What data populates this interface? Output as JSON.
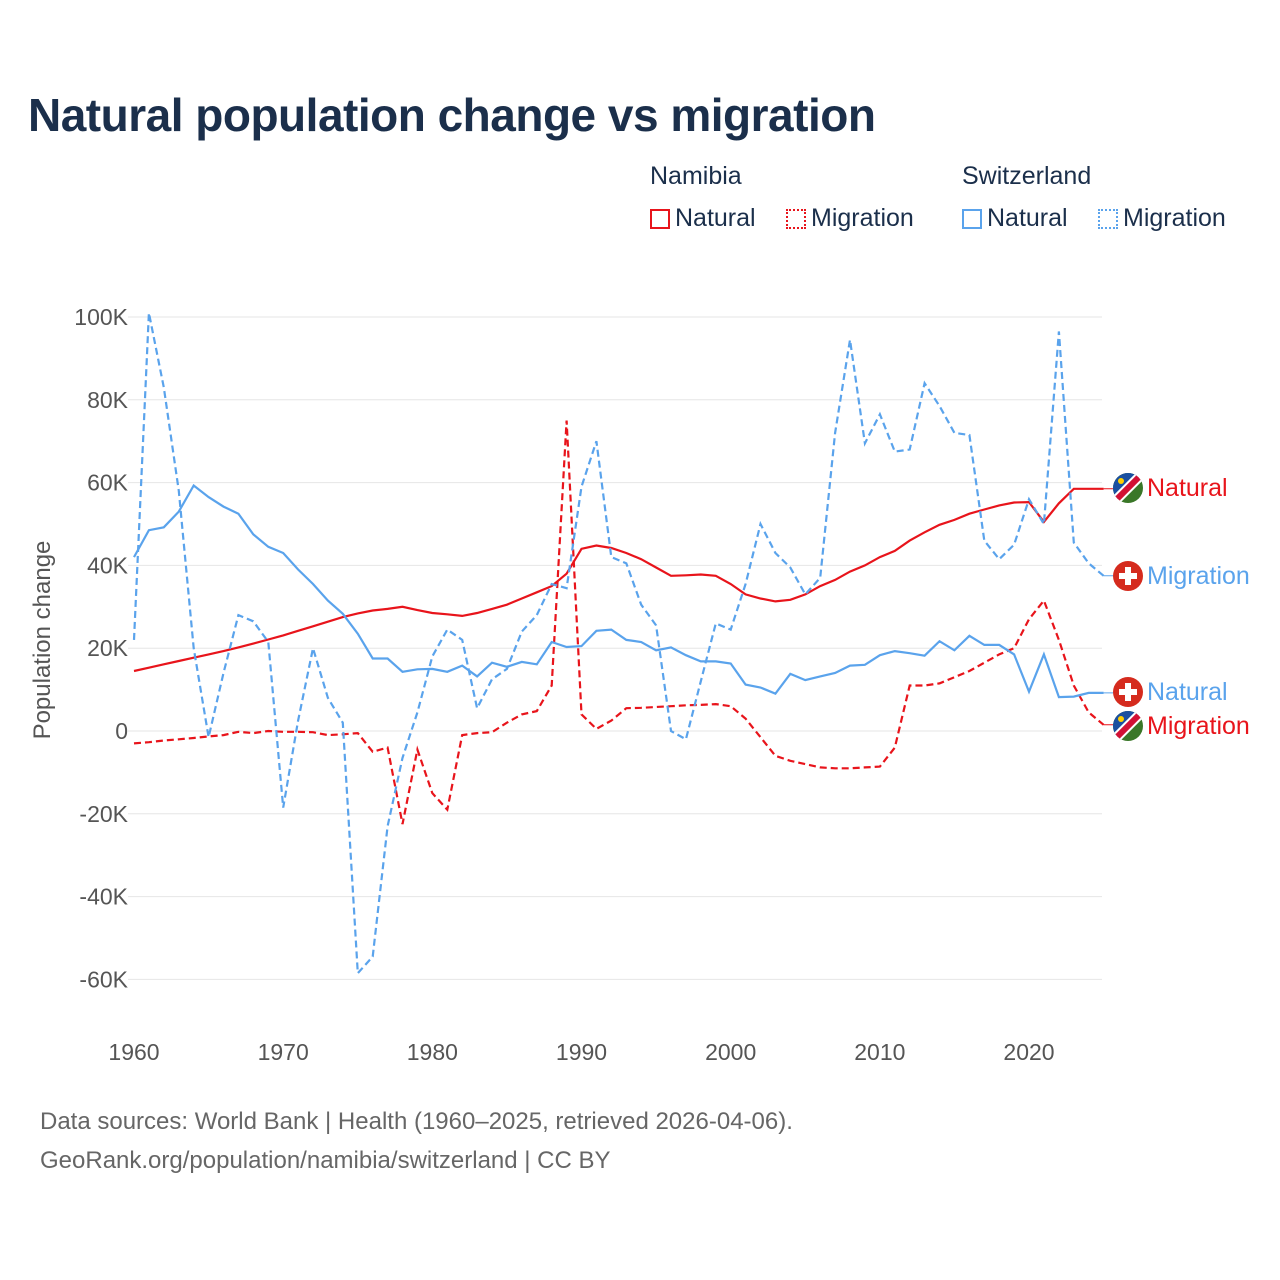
{
  "title": "Natural population change vs migration",
  "legend": {
    "groups": [
      {
        "name": "Namibia",
        "items": [
          {
            "label": "Natural",
            "style": "solid"
          },
          {
            "label": "Migration",
            "style": "dotted"
          }
        ],
        "color": "#e8141b"
      },
      {
        "name": "Switzerland",
        "items": [
          {
            "label": "Natural",
            "style": "solid"
          },
          {
            "label": "Migration",
            "style": "dotted"
          }
        ],
        "color": "#5aa3ec"
      }
    ]
  },
  "footer": {
    "line1": "Data sources: World Bank | Health (1960–2025, retrieved 2026-04-06).",
    "line2": "GeoRank.org/population/namibia/switzerland | CC BY"
  },
  "chart_data": {
    "type": "line",
    "title": "Natural population change vs migration",
    "xlabel": "",
    "ylabel": "Population change",
    "xlim": [
      1960,
      2025
    ],
    "ylim": [
      -70000,
      100000
    ],
    "xticks": [
      1960,
      1970,
      1980,
      1990,
      2000,
      2010,
      2020
    ],
    "xtick_labels": [
      "1960",
      "1970",
      "1980",
      "1990",
      "2000",
      "2010",
      "2020"
    ],
    "yticks": [
      100000,
      80000,
      60000,
      40000,
      20000,
      0,
      -20000,
      -40000,
      -60000
    ],
    "ytick_labels": [
      "100K",
      "80K",
      "60K",
      "40K",
      "20K",
      "0",
      "-20K",
      "-40K",
      "-60K"
    ],
    "grid": true,
    "x_start": 1960,
    "series": [
      {
        "name": "Namibia Natural",
        "end_label": "Natural",
        "country": "Namibia",
        "color": "#e8141b",
        "dash": false,
        "values": [
          14500,
          15300,
          16100,
          16900,
          17700,
          18500,
          19300,
          20200,
          21100,
          22100,
          23100,
          24200,
          25300,
          26400,
          27500,
          28400,
          29100,
          29500,
          30000,
          29200,
          28500,
          28200,
          27800,
          28500,
          29500,
          30500,
          32000,
          33500,
          35000,
          38000,
          44000,
          44800,
          44200,
          43000,
          41500,
          39500,
          37500,
          37600,
          37800,
          37500,
          35500,
          33000,
          32000,
          31300,
          31700,
          33000,
          35000,
          36500,
          38500,
          40000,
          42000,
          43500,
          46000,
          48000,
          49800,
          51000,
          52500,
          53500,
          54500,
          55200,
          55300,
          50500,
          55000,
          58500,
          58500,
          58500
        ]
      },
      {
        "name": "Namibia Migration",
        "end_label": "Migration",
        "country": "Namibia",
        "color": "#e8141b",
        "dash": true,
        "values": [
          -3000,
          -2700,
          -2300,
          -2000,
          -1700,
          -1300,
          -1000,
          -200,
          -500,
          0,
          -200,
          -200,
          -300,
          -1000,
          -800,
          -500,
          -5000,
          -4000,
          -22500,
          -4500,
          -15000,
          -19000,
          -1000,
          -500,
          -300,
          2000,
          4000,
          4800,
          11000,
          75000,
          4000,
          500,
          2500,
          5500,
          5600,
          5800,
          6000,
          6200,
          6300,
          6500,
          6000,
          3000,
          -1500,
          -6000,
          -7200,
          -8000,
          -8800,
          -9000,
          -9000,
          -8800,
          -8600,
          -4000,
          11000,
          11000,
          11500,
          13000,
          14500,
          16500,
          18500,
          20000,
          27000,
          31500,
          22000,
          11000,
          4500,
          1500
        ]
      },
      {
        "name": "Switzerland Natural",
        "end_label": "Natural",
        "country": "Switzerland",
        "color": "#5aa3ec",
        "dash": false,
        "values": [
          42000,
          48500,
          49200,
          53000,
          59300,
          56500,
          54200,
          52500,
          47500,
          44500,
          43000,
          39000,
          35500,
          31500,
          28300,
          23500,
          17500,
          17500,
          14300,
          14900,
          15000,
          14300,
          15800,
          13200,
          16500,
          15500,
          16700,
          16100,
          21500,
          20300,
          20500,
          24200,
          24500,
          22000,
          21500,
          19500,
          20200,
          18300,
          16800,
          16800,
          16300,
          11200,
          10500,
          9000,
          13800,
          12300,
          13200,
          14000,
          15800,
          16000,
          18300,
          19300,
          18800,
          18200,
          21700,
          19500,
          23000,
          20800,
          20800,
          18500,
          9500,
          18500,
          8200,
          8300,
          9200,
          9200
        ]
      },
      {
        "name": "Switzerland Migration",
        "end_label": "Migration",
        "country": "Switzerland",
        "color": "#5aa3ec",
        "dash": true,
        "values": [
          22000,
          101000,
          83000,
          58000,
          20000,
          -1500,
          14000,
          28000,
          26500,
          21500,
          -18500,
          2500,
          20000,
          8000,
          2000,
          -58500,
          -54500,
          -23000,
          -6500,
          4500,
          18000,
          24500,
          22000,
          5500,
          12500,
          15000,
          24000,
          28000,
          35500,
          34500,
          59000,
          70000,
          42000,
          40500,
          30500,
          25500,
          0,
          -2000,
          12000,
          26000,
          24500,
          35500,
          50000,
          43000,
          39500,
          33000,
          37000,
          72000,
          94500,
          69500,
          76500,
          67500,
          68000,
          84000,
          78500,
          72000,
          71500,
          46000,
          41500,
          45000,
          56000,
          50000,
          96500,
          45500,
          40500,
          37500
        ]
      }
    ]
  }
}
